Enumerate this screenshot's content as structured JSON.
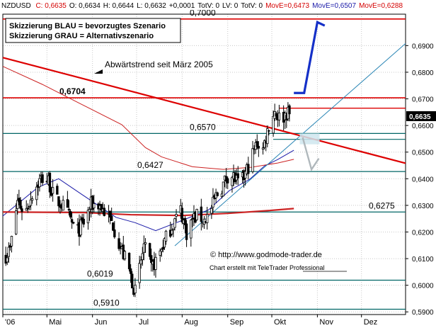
{
  "header": {
    "symbol": "NZDUSD",
    "fields": [
      {
        "text": "C: 0,6635",
        "color": "#d40000"
      },
      {
        "text": "O: 0,6634",
        "color": "#000000"
      },
      {
        "text": "H: 0,6644",
        "color": "#000000"
      },
      {
        "text": "L: 0,6632",
        "color": "#000000"
      },
      {
        "text": "+0,0001",
        "color": "#000000"
      },
      {
        "text": "TotV: 0",
        "color": "#000000"
      },
      {
        "text": "LV: 0",
        "color": "#000000"
      },
      {
        "text": "TotV: 0",
        "color": "#000000"
      },
      {
        "text": "MovE=0,6473",
        "color": "#d40000"
      },
      {
        "text": "MovE=0,6507",
        "color": "#1a1aa8"
      },
      {
        "text": "MovE=0,6288",
        "color": "#d40000"
      }
    ]
  },
  "legend_box": {
    "line1": "Skizzierung BLAU = bevorzugtes Szenario",
    "line2": "Skizzierung GRAU = Alternativszenario"
  },
  "annotations": {
    "trend_label": "Abwärtstrend seit März 2005",
    "copyright": "© http://www.godmode-trader.de",
    "credit": "Chart erstellt mit TeleTrader Professional"
  },
  "colors": {
    "background": "#ffffff",
    "grid": "#c8c8c8",
    "candle": "#000000",
    "support_line": "#006666",
    "resistance_line": "#dd0000",
    "trendline": "#dd0000",
    "uptrend_line": "#2b86b5",
    "ma_short": "#1a1aa8",
    "ma_mid": "#cc2222",
    "ma_long": "#cc2222",
    "scenario_blue": "#1530c8",
    "scenario_grey": "#b0b8bc",
    "price_tag_bg": "#000000",
    "price_tag_fg": "#ffffff"
  },
  "chart_data": {
    "type": "candlestick",
    "x_axis": {
      "labels": [
        "'06",
        "Mai",
        "Jun",
        "Jul",
        "Aug",
        "Sep",
        "Okt",
        "Nov",
        "Dez"
      ],
      "start": "2006-04-01",
      "end": "2006-12-31"
    },
    "y_axis": {
      "range": [
        0.589,
        0.7018
      ],
      "ticks": [
        0.59,
        0.6,
        0.61,
        0.62,
        0.63,
        0.64,
        0.65,
        0.66,
        0.67,
        0.68,
        0.69
      ],
      "tick_labels": [
        "0,5900",
        "0,6000",
        "0,6100",
        "0,6200",
        "0,6300",
        "0,6400",
        "0,6500",
        "0,6600",
        "0,6700",
        "0,6800",
        "0,6900"
      ],
      "grid": true,
      "side": "right"
    },
    "last_price": {
      "value": 0.6635,
      "label": "0,6635"
    },
    "horizontal_levels": [
      {
        "value": 0.7,
        "label": "0,7000",
        "color": "#dd0000"
      },
      {
        "value": 0.6704,
        "label": "0,6704",
        "color": "#dd0000"
      },
      {
        "value": 0.6665,
        "label": "",
        "color": "#dd0000"
      },
      {
        "value": 0.657,
        "label": "0,6570",
        "color": "#006666"
      },
      {
        "value": 0.6427,
        "label": "0,6427",
        "color": "#006666"
      },
      {
        "value": 0.6275,
        "label": "0,6275",
        "color": "#006666"
      },
      {
        "value": 0.6019,
        "label": "0,6019",
        "color": "#006666"
      },
      {
        "value": 0.591,
        "label": "0,5910",
        "color": "#006666"
      }
    ],
    "trendlines": [
      {
        "name": "Abwärtstrend",
        "from": [
          "2006-04-01",
          0.6855
        ],
        "to": [
          "2006-12-31",
          0.6458
        ]
      },
      {
        "name": "Aufwärtstrend",
        "from": [
          "2006-07-27",
          0.6148
        ],
        "to": [
          "2006-12-31",
          0.6908
        ]
      }
    ],
    "scenarios": [
      {
        "name": "BLAU",
        "points": [
          [
            "2006-10-16",
            0.6722
          ],
          [
            "2006-10-23",
            0.6722
          ],
          [
            "2006-11-01",
            0.6988
          ],
          [
            "2006-11-06",
            0.6975
          ]
        ]
      },
      {
        "name": "GRAU",
        "points": [
          [
            "2006-10-22",
            0.6555
          ],
          [
            "2006-10-28",
            0.6435
          ],
          [
            "2006-11-02",
            0.6476
          ]
        ]
      }
    ],
    "moving_averages": [
      {
        "name": "MovE=0,6507",
        "color": "#1a1aa8",
        "points": [
          [
            "2006-04-01",
            0.626
          ],
          [
            "2006-04-25",
            0.6368
          ],
          [
            "2006-05-09",
            0.64
          ],
          [
            "2006-05-25",
            0.634
          ],
          [
            "2006-06-17",
            0.6255
          ],
          [
            "2006-06-30",
            0.6235
          ],
          [
            "2006-07-14",
            0.6205
          ],
          [
            "2006-07-29",
            0.6237
          ],
          [
            "2006-08-19",
            0.6283
          ],
          [
            "2006-09-02",
            0.6355
          ],
          [
            "2006-09-16",
            0.6398
          ],
          [
            "2006-09-26",
            0.6448
          ],
          [
            "2006-10-05",
            0.6472
          ],
          [
            "2006-10-16",
            0.6507
          ]
        ]
      },
      {
        "name": "MovE=0,6473",
        "color": "#cc2222",
        "points": [
          [
            "2006-04-01",
            0.6822
          ],
          [
            "2006-04-28",
            0.6754
          ],
          [
            "2006-05-24",
            0.6681
          ],
          [
            "2006-06-21",
            0.6603
          ],
          [
            "2006-07-07",
            0.6517
          ],
          [
            "2006-07-18",
            0.6482
          ],
          [
            "2006-08-08",
            0.6445
          ],
          [
            "2006-08-29",
            0.6435
          ],
          [
            "2006-09-17",
            0.6443
          ],
          [
            "2006-10-05",
            0.6459
          ],
          [
            "2006-10-16",
            0.6473
          ]
        ]
      },
      {
        "name": "MovE=0,6288",
        "color": "#cc2222",
        "points": [
          [
            "2006-04-01",
            0.6275
          ],
          [
            "2006-05-26",
            0.6273
          ],
          [
            "2006-06-27",
            0.6265
          ],
          [
            "2006-08-01",
            0.6262
          ],
          [
            "2006-09-01",
            0.627
          ],
          [
            "2006-09-28",
            0.628
          ],
          [
            "2006-10-16",
            0.6288
          ]
        ]
      }
    ],
    "price_path": [
      [
        "2006-04-01",
        0.6098
      ],
      [
        "2006-04-06",
        0.6135
      ],
      [
        "2006-04-11",
        0.6318
      ],
      [
        "2006-04-16",
        0.627
      ],
      [
        "2006-04-21",
        0.6345
      ],
      [
        "2006-04-27",
        0.6402
      ],
      [
        "2006-05-02",
        0.6392
      ],
      [
        "2006-05-06",
        0.6325
      ],
      [
        "2006-05-11",
        0.6305
      ],
      [
        "2006-05-16",
        0.6258
      ],
      [
        "2006-05-21",
        0.6195
      ],
      [
        "2006-05-26",
        0.6235
      ],
      [
        "2006-05-31",
        0.6302
      ],
      [
        "2006-06-05",
        0.6305
      ],
      [
        "2006-06-10",
        0.627
      ],
      [
        "2006-06-15",
        0.6228
      ],
      [
        "2006-06-20",
        0.6142
      ],
      [
        "2006-06-25",
        0.6075
      ],
      [
        "2006-06-30",
        0.5975
      ],
      [
        "2006-07-06",
        0.6148
      ],
      [
        "2006-07-11",
        0.6062
      ],
      [
        "2006-07-16",
        0.6112
      ],
      [
        "2006-07-21",
        0.6178
      ],
      [
        "2006-07-26",
        0.6235
      ],
      [
        "2006-07-31",
        0.6282
      ],
      [
        "2006-08-04",
        0.6198
      ],
      [
        "2006-08-08",
        0.6248
      ],
      [
        "2006-08-12",
        0.6262
      ],
      [
        "2006-08-16",
        0.6245
      ],
      [
        "2006-08-20",
        0.6272
      ],
      [
        "2006-08-24",
        0.6334
      ],
      [
        "2006-08-28",
        0.6368
      ],
      [
        "2006-09-01",
        0.6413
      ],
      [
        "2006-09-05",
        0.6408
      ],
      [
        "2006-09-09",
        0.6372
      ],
      [
        "2006-09-13",
        0.6418
      ],
      [
        "2006-09-17",
        0.6478
      ],
      [
        "2006-09-21",
        0.6535
      ],
      [
        "2006-09-25",
        0.6512
      ],
      [
        "2006-09-29",
        0.6602
      ],
      [
        "2006-10-03",
        0.6655
      ],
      [
        "2006-10-07",
        0.6622
      ],
      [
        "2006-10-11",
        0.6648
      ],
      [
        "2006-10-15",
        0.6635
      ]
    ]
  }
}
